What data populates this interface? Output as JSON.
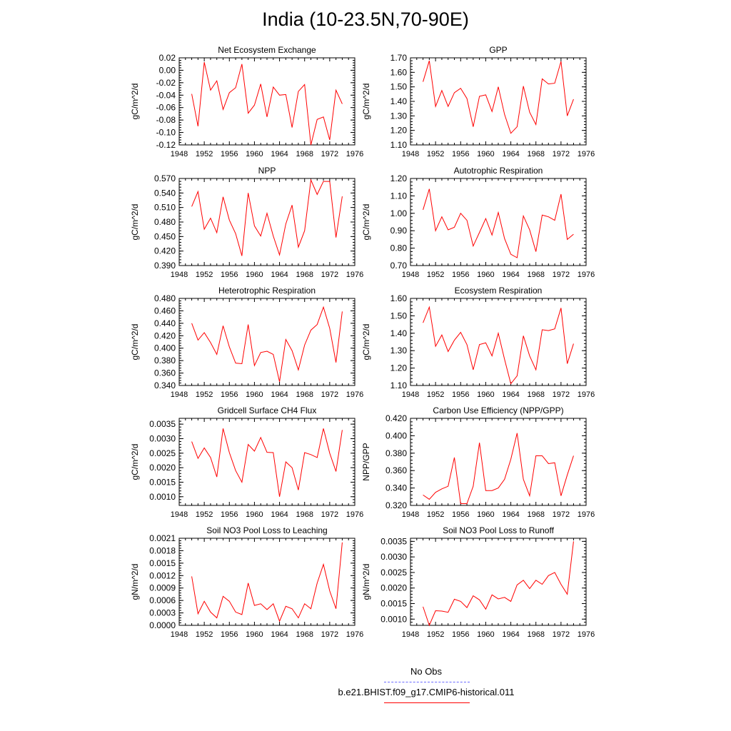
{
  "page": {
    "title": "India (10-23.5N,70-90E)"
  },
  "legend": {
    "items": [
      {
        "label": "No Obs",
        "color": "#6b6bff",
        "dash": "dashed"
      },
      {
        "label": "b.e21.BHIST.f09_g17.CMIP6-historical.011",
        "color": "#ff0000",
        "dash": "solid"
      }
    ]
  },
  "chart_data": [
    {
      "type": "line",
      "title": "Net Ecosystem Exchange",
      "ylabel": "gC/m^2/d",
      "xlim": [
        1948,
        1976
      ],
      "ylim": [
        -0.12,
        0.02
      ],
      "xticks": [
        "1948",
        "1952",
        "1956",
        "1960",
        "1964",
        "1968",
        "1972",
        "1976"
      ],
      "yticks": [
        "-0.12",
        "-0.10",
        "-0.08",
        "-0.06",
        "-0.04",
        "-0.02",
        "0.00",
        "0.02"
      ],
      "x": [
        1950,
        1951,
        1952,
        1953,
        1954,
        1955,
        1956,
        1957,
        1958,
        1959,
        1960,
        1961,
        1962,
        1963,
        1964,
        1965,
        1966,
        1967,
        1968,
        1969,
        1970,
        1971,
        1972,
        1973,
        1974
      ],
      "series": [
        {
          "color": "#ff0000",
          "values": [
            -0.038,
            -0.09,
            0.013,
            -0.032,
            -0.017,
            -0.063,
            -0.036,
            -0.028,
            0.01,
            -0.069,
            -0.056,
            -0.022,
            -0.075,
            -0.027,
            -0.04,
            -0.039,
            -0.092,
            -0.034,
            -0.023,
            -0.12,
            -0.079,
            -0.075,
            -0.112,
            -0.032,
            -0.054
          ]
        }
      ]
    },
    {
      "type": "line",
      "title": "GPP",
      "ylabel": "gC/m^2/d",
      "xlim": [
        1948,
        1976
      ],
      "ylim": [
        1.1,
        1.7
      ],
      "xticks": [
        "1948",
        "1952",
        "1956",
        "1960",
        "1964",
        "1968",
        "1972",
        "1976"
      ],
      "yticks": [
        "1.10",
        "1.20",
        "1.30",
        "1.40",
        "1.50",
        "1.60",
        "1.70"
      ],
      "x": [
        1950,
        1951,
        1952,
        1953,
        1954,
        1955,
        1956,
        1957,
        1958,
        1959,
        1960,
        1961,
        1962,
        1963,
        1964,
        1965,
        1966,
        1967,
        1968,
        1969,
        1970,
        1971,
        1972,
        1973,
        1974
      ],
      "series": [
        {
          "color": "#ff0000",
          "values": [
            1.535,
            1.68,
            1.365,
            1.475,
            1.365,
            1.46,
            1.49,
            1.42,
            1.225,
            1.435,
            1.445,
            1.33,
            1.5,
            1.31,
            1.18,
            1.225,
            1.505,
            1.325,
            1.24,
            1.555,
            1.52,
            1.525,
            1.675,
            1.3,
            1.415
          ]
        }
      ]
    },
    {
      "type": "line",
      "title": "NPP",
      "ylabel": "gC/m^2/d",
      "xlim": [
        1948,
        1976
      ],
      "ylim": [
        0.39,
        0.57
      ],
      "xticks": [
        "1948",
        "1952",
        "1956",
        "1960",
        "1964",
        "1968",
        "1972",
        "1976"
      ],
      "yticks": [
        "0.390",
        "0.420",
        "0.450",
        "0.480",
        "0.510",
        "0.540",
        "0.570"
      ],
      "x": [
        1950,
        1951,
        1952,
        1953,
        1954,
        1955,
        1956,
        1957,
        1958,
        1959,
        1960,
        1961,
        1962,
        1963,
        1964,
        1965,
        1966,
        1967,
        1968,
        1969,
        1970,
        1971,
        1972,
        1973,
        1974
      ],
      "series": [
        {
          "color": "#ff0000",
          "values": [
            0.512,
            0.543,
            0.465,
            0.488,
            0.458,
            0.532,
            0.484,
            0.456,
            0.41,
            0.54,
            0.472,
            0.451,
            0.498,
            0.451,
            0.412,
            0.476,
            0.515,
            0.428,
            0.462,
            0.567,
            0.537,
            0.564,
            0.564,
            0.448,
            0.533
          ]
        }
      ]
    },
    {
      "type": "line",
      "title": "Autotrophic Respiration",
      "ylabel": "gC/m^2/d",
      "xlim": [
        1948,
        1976
      ],
      "ylim": [
        0.7,
        1.2
      ],
      "xticks": [
        "1948",
        "1952",
        "1956",
        "1960",
        "1964",
        "1968",
        "1972",
        "1976"
      ],
      "yticks": [
        "0.70",
        "0.80",
        "0.90",
        "1.00",
        "1.10",
        "1.20"
      ],
      "x": [
        1950,
        1951,
        1952,
        1953,
        1954,
        1955,
        1956,
        1957,
        1958,
        1959,
        1960,
        1961,
        1962,
        1963,
        1964,
        1965,
        1966,
        1967,
        1968,
        1969,
        1970,
        1971,
        1972,
        1973,
        1974
      ],
      "series": [
        {
          "color": "#ff0000",
          "values": [
            1.02,
            1.14,
            0.9,
            0.98,
            0.905,
            0.92,
            1.0,
            0.96,
            0.812,
            0.89,
            0.97,
            0.875,
            1.005,
            0.855,
            0.765,
            0.745,
            0.985,
            0.905,
            0.78,
            0.99,
            0.98,
            0.96,
            1.11,
            0.85,
            0.88
          ]
        }
      ]
    },
    {
      "type": "line",
      "title": "Heterotrophic Respiration",
      "ylabel": "gC/m^2/d",
      "xlim": [
        1948,
        1976
      ],
      "ylim": [
        0.34,
        0.48
      ],
      "xticks": [
        "1948",
        "1952",
        "1956",
        "1960",
        "1964",
        "1968",
        "1972",
        "1976"
      ],
      "yticks": [
        "0.340",
        "0.360",
        "0.380",
        "0.400",
        "0.420",
        "0.440",
        "0.460",
        "0.480"
      ],
      "x": [
        1950,
        1951,
        1952,
        1953,
        1954,
        1955,
        1956,
        1957,
        1958,
        1959,
        1960,
        1961,
        1962,
        1963,
        1964,
        1965,
        1966,
        1967,
        1968,
        1969,
        1970,
        1971,
        1972,
        1973,
        1974
      ],
      "series": [
        {
          "color": "#ff0000",
          "values": [
            0.44,
            0.413,
            0.425,
            0.409,
            0.39,
            0.436,
            0.402,
            0.376,
            0.375,
            0.438,
            0.372,
            0.393,
            0.395,
            0.39,
            0.346,
            0.414,
            0.396,
            0.365,
            0.405,
            0.429,
            0.438,
            0.466,
            0.432,
            0.377,
            0.459
          ]
        }
      ]
    },
    {
      "type": "line",
      "title": "Ecosystem Respiration",
      "ylabel": "gC/m^2/d",
      "xlim": [
        1948,
        1976
      ],
      "ylim": [
        1.1,
        1.6
      ],
      "xticks": [
        "1948",
        "1952",
        "1956",
        "1960",
        "1964",
        "1968",
        "1972",
        "1976"
      ],
      "yticks": [
        "1.10",
        "1.20",
        "1.30",
        "1.40",
        "1.50",
        "1.60"
      ],
      "x": [
        1950,
        1951,
        1952,
        1953,
        1954,
        1955,
        1956,
        1957,
        1958,
        1959,
        1960,
        1961,
        1962,
        1963,
        1964,
        1965,
        1966,
        1967,
        1968,
        1969,
        1970,
        1971,
        1972,
        1973,
        1974
      ],
      "series": [
        {
          "color": "#ff0000",
          "values": [
            1.46,
            1.55,
            1.325,
            1.39,
            1.295,
            1.36,
            1.405,
            1.335,
            1.19,
            1.335,
            1.345,
            1.27,
            1.4,
            1.25,
            1.11,
            1.155,
            1.385,
            1.27,
            1.19,
            1.42,
            1.415,
            1.425,
            1.545,
            1.225,
            1.34
          ]
        }
      ]
    },
    {
      "type": "line",
      "title": "Gridcell Surface CH4 Flux",
      "ylabel": "gC/m^2/d",
      "xlim": [
        1948,
        1976
      ],
      "ylim": [
        0.0007,
        0.0037
      ],
      "xticks": [
        "1948",
        "1952",
        "1956",
        "1960",
        "1964",
        "1968",
        "1972",
        "1976"
      ],
      "yticks": [
        "0.0010",
        "0.0015",
        "0.0020",
        "0.0025",
        "0.0030",
        "0.0035"
      ],
      "ytickvals": [
        0.001,
        0.0015,
        0.002,
        0.0025,
        0.003,
        0.0035
      ],
      "x": [
        1950,
        1951,
        1952,
        1953,
        1954,
        1955,
        1956,
        1957,
        1958,
        1959,
        1960,
        1961,
        1962,
        1963,
        1964,
        1965,
        1966,
        1967,
        1968,
        1969,
        1970,
        1971,
        1972,
        1973,
        1974
      ],
      "series": [
        {
          "color": "#ff0000",
          "values": [
            0.0029,
            0.00232,
            0.00268,
            0.00235,
            0.00168,
            0.00335,
            0.00252,
            0.0019,
            0.0015,
            0.0028,
            0.00257,
            0.00304,
            0.00253,
            0.00252,
            0.001,
            0.0022,
            0.002,
            0.00123,
            0.00252,
            0.00245,
            0.00235,
            0.00335,
            0.0025,
            0.00187,
            0.0033
          ]
        }
      ]
    },
    {
      "type": "line",
      "title": "Carbon Use Efficiency (NPP/GPP)",
      "ylabel": "NPP/GPP",
      "xlim": [
        1948,
        1976
      ],
      "ylim": [
        0.32,
        0.42
      ],
      "xticks": [
        "1948",
        "1952",
        "1956",
        "1960",
        "1964",
        "1968",
        "1972",
        "1976"
      ],
      "yticks": [
        "0.320",
        "0.340",
        "0.360",
        "0.380",
        "0.400",
        "0.420"
      ],
      "x": [
        1950,
        1951,
        1952,
        1953,
        1954,
        1955,
        1956,
        1957,
        1958,
        1959,
        1960,
        1961,
        1962,
        1963,
        1964,
        1965,
        1966,
        1967,
        1968,
        1969,
        1970,
        1971,
        1972,
        1973,
        1974
      ],
      "series": [
        {
          "color": "#ff0000",
          "values": [
            0.332,
            0.327,
            0.335,
            0.339,
            0.342,
            0.375,
            0.322,
            0.322,
            0.342,
            0.392,
            0.337,
            0.337,
            0.34,
            0.35,
            0.373,
            0.403,
            0.35,
            0.331,
            0.377,
            0.377,
            0.368,
            0.369,
            0.331,
            0.355,
            0.377
          ]
        }
      ]
    },
    {
      "type": "line",
      "title": "Soil NO3 Pool Loss to Leaching",
      "ylabel": "gN/m^2/d",
      "xlim": [
        1948,
        1976
      ],
      "ylim": [
        0.0,
        0.0021
      ],
      "xticks": [
        "1948",
        "1952",
        "1956",
        "1960",
        "1964",
        "1968",
        "1972",
        "1976"
      ],
      "yticks": [
        "0.0000",
        "0.0003",
        "0.0006",
        "0.0009",
        "0.0012",
        "0.0015",
        "0.0018",
        "0.0021"
      ],
      "x": [
        1950,
        1951,
        1952,
        1953,
        1954,
        1955,
        1956,
        1957,
        1958,
        1959,
        1960,
        1961,
        1962,
        1963,
        1964,
        1965,
        1966,
        1967,
        1968,
        1969,
        1970,
        1971,
        1972,
        1973,
        1974
      ],
      "series": [
        {
          "color": "#ff0000",
          "values": [
            0.00118,
            0.00028,
            0.00058,
            0.00032,
            0.00018,
            0.0007,
            0.00058,
            0.00032,
            0.00026,
            0.00102,
            0.00048,
            0.00052,
            0.00038,
            0.00052,
            0.0001,
            0.00046,
            0.0004,
            0.00018,
            0.00052,
            0.0004,
            0.00102,
            0.00147,
            0.00083,
            0.0004,
            0.002
          ]
        }
      ]
    },
    {
      "type": "line",
      "title": "Soil NO3 Pool Loss to Runoff",
      "ylabel": "gN/m^2/d",
      "xlim": [
        1948,
        1976
      ],
      "ylim": [
        0.0008,
        0.0036
      ],
      "xticks": [
        "1948",
        "1952",
        "1956",
        "1960",
        "1964",
        "1968",
        "1972",
        "1976"
      ],
      "yticks": [
        "0.0010",
        "0.0015",
        "0.0020",
        "0.0025",
        "0.0030",
        "0.0035"
      ],
      "ytickvals": [
        0.001,
        0.0015,
        0.002,
        0.0025,
        0.003,
        0.0035
      ],
      "x": [
        1950,
        1951,
        1952,
        1953,
        1954,
        1955,
        1956,
        1957,
        1958,
        1959,
        1960,
        1961,
        1962,
        1963,
        1964,
        1965,
        1966,
        1967,
        1968,
        1969,
        1970,
        1971,
        1972,
        1973,
        1974
      ],
      "series": [
        {
          "color": "#ff0000",
          "values": [
            0.0014,
            0.0008,
            0.00127,
            0.00126,
            0.00122,
            0.00164,
            0.00157,
            0.00137,
            0.00175,
            0.00162,
            0.00132,
            0.00178,
            0.00165,
            0.0017,
            0.00157,
            0.0021,
            0.00225,
            0.00198,
            0.00225,
            0.00212,
            0.0024,
            0.0025,
            0.00212,
            0.0018,
            0.0035
          ]
        }
      ]
    }
  ]
}
